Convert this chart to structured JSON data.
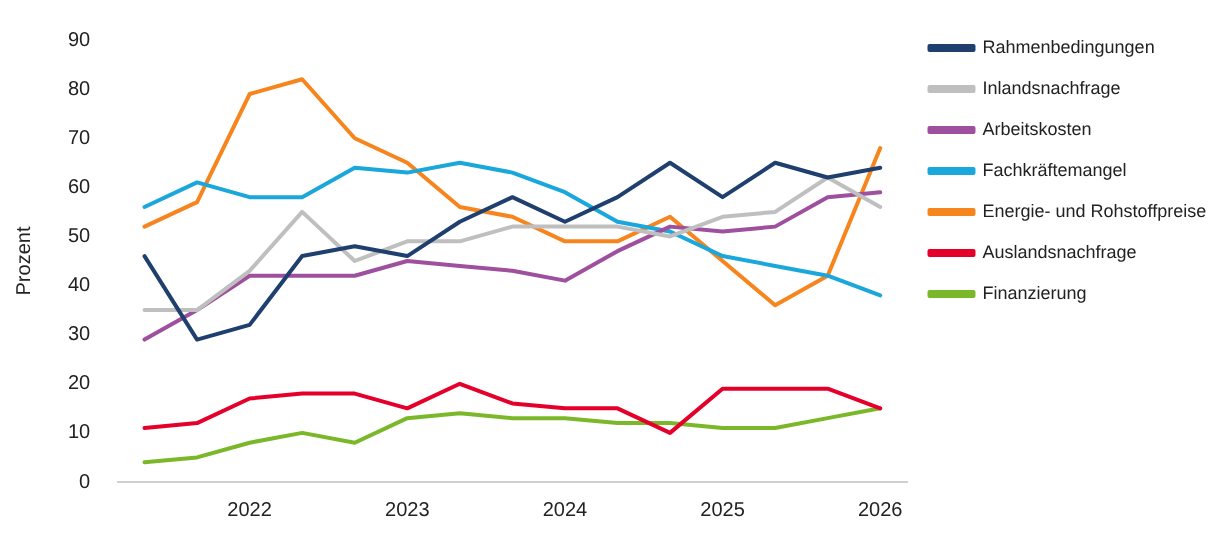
{
  "chart_data": {
    "type": "line",
    "ylabel": "Prozent",
    "categories": [
      null,
      null,
      "2022",
      null,
      null,
      "2023",
      null,
      null,
      "2024",
      null,
      null,
      "2025",
      null,
      null,
      "2026"
    ],
    "ylim": [
      0,
      90
    ],
    "yticks": [
      0,
      10,
      20,
      30,
      40,
      50,
      60,
      70,
      80,
      90
    ],
    "grid": false,
    "legend": "right",
    "marker": "none",
    "line_style": "solid",
    "series": [
      {
        "name": "Rahmenbedingungen",
        "color": "#1f3f6e",
        "values": [
          46,
          29,
          32,
          46,
          48,
          46,
          53,
          58,
          53,
          58,
          65,
          58,
          65,
          62,
          64
        ]
      },
      {
        "name": "Inlandsnachfrage",
        "color": "#bfbfbf",
        "values": [
          35,
          35,
          43,
          55,
          45,
          49,
          49,
          52,
          52,
          52,
          50,
          54,
          55,
          62,
          56
        ]
      },
      {
        "name": "Arbeitskosten",
        "color": "#9e4f9e",
        "values": [
          29,
          35,
          42,
          42,
          42,
          45,
          44,
          43,
          41,
          47,
          52,
          51,
          52,
          58,
          59
        ]
      },
      {
        "name": "Fachkräftemangel",
        "color": "#1aa7dc",
        "values": [
          56,
          61,
          58,
          58,
          64,
          63,
          65,
          63,
          59,
          53,
          51,
          46,
          44,
          42,
          38
        ]
      },
      {
        "name": "Energie- und Rohstoffpreise",
        "color": "#f7851e",
        "values": [
          52,
          57,
          79,
          82,
          70,
          65,
          56,
          54,
          49,
          49,
          54,
          45,
          36,
          42,
          68
        ]
      },
      {
        "name": "Auslandsnachfrage",
        "color": "#e4002b",
        "values": [
          11,
          12,
          17,
          18,
          18,
          15,
          20,
          16,
          15,
          15,
          10,
          19,
          19,
          19,
          15
        ]
      },
      {
        "name": "Finanzierung",
        "color": "#7ab829",
        "values": [
          4,
          5,
          8,
          10,
          8,
          13,
          14,
          13,
          13,
          12,
          12,
          11,
          11,
          13,
          15
        ]
      }
    ]
  }
}
